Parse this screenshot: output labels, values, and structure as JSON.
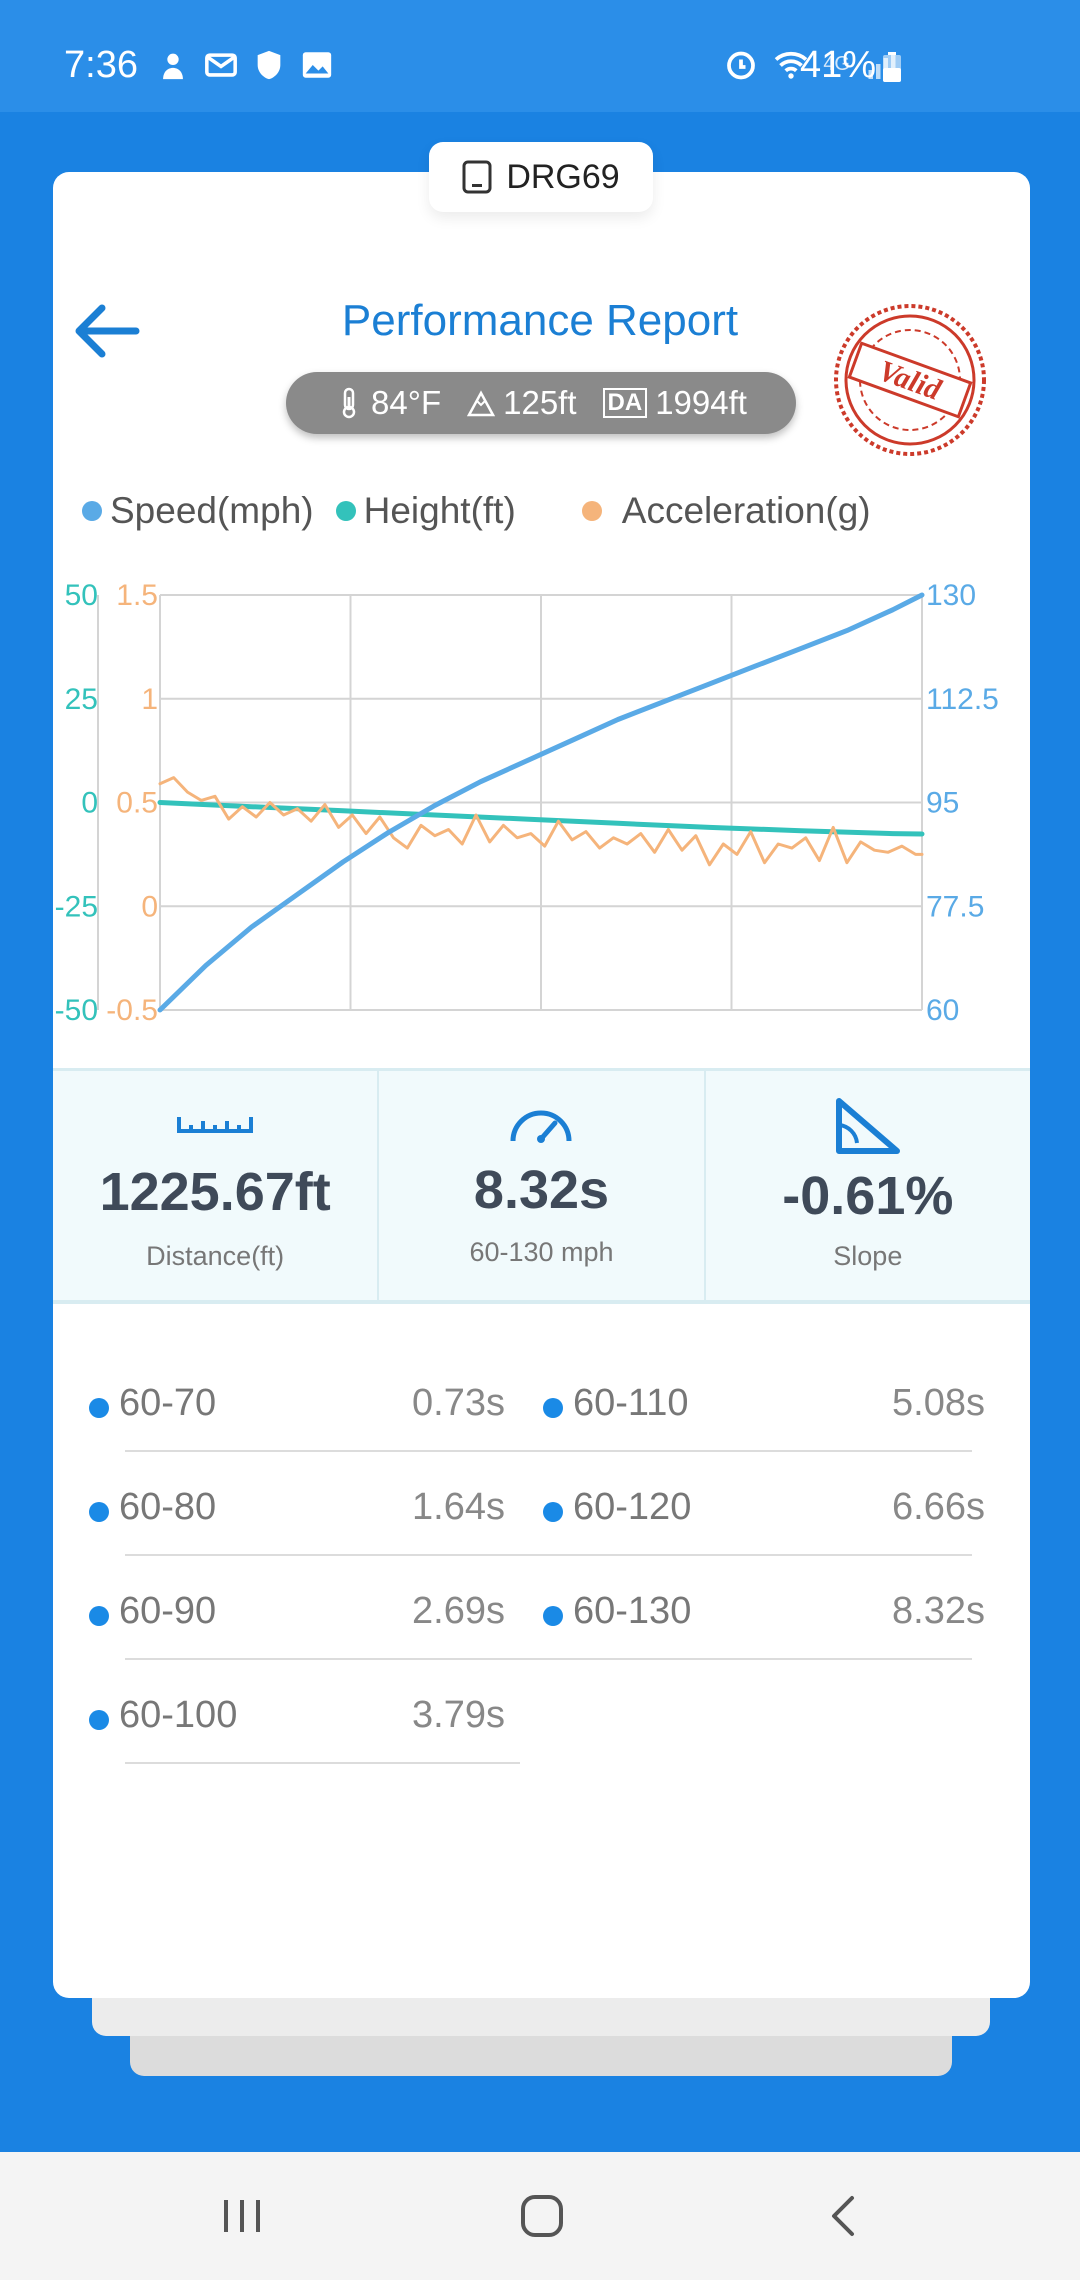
{
  "status_bar": {
    "time": "7:36",
    "battery": "41%",
    "network": "4G",
    "left_icons": [
      "notification-icon",
      "message-icon",
      "shield-icon",
      "gallery-icon"
    ],
    "right_icons": [
      "alarm-icon",
      "wifi-icon",
      "signal-icon",
      "battery-icon"
    ]
  },
  "device": {
    "name": "DRG69"
  },
  "header": {
    "title": "Performance Report",
    "stamp_text": "Valid"
  },
  "environment": {
    "temperature": "84°F",
    "altitude": "125ft",
    "da_label": "DA",
    "density_altitude": "1994ft"
  },
  "legend": [
    {
      "label": "Speed(mph)",
      "color": "#5aaae6"
    },
    {
      "label": "Height(ft)",
      "color": "#33c2bb"
    },
    {
      "label": "Acceleration(g)",
      "color": "#f5b47b"
    }
  ],
  "chart_data": {
    "type": "line",
    "series": [
      {
        "name": "Speed(mph)",
        "axis": "right",
        "color": "#5aaae6",
        "x": [
          0,
          0.5,
          1,
          1.5,
          2,
          2.5,
          3,
          3.5,
          4,
          4.5,
          5,
          5.5,
          6,
          6.5,
          7,
          7.5,
          8,
          8.32
        ],
        "y": [
          60,
          67.5,
          74,
          79.5,
          85,
          90,
          94.5,
          98.5,
          102,
          105.5,
          109,
          112,
          115,
          118,
          121,
          124,
          127.5,
          130
        ]
      },
      {
        "name": "Height(ft)",
        "axis": "left-outer",
        "color": "#33c2bb",
        "x": [
          0,
          1,
          2,
          3,
          4,
          5,
          6,
          7,
          8,
          8.32
        ],
        "y": [
          0,
          -1,
          -2,
          -3,
          -4,
          -5,
          -6,
          -6.8,
          -7.5,
          -7.6
        ]
      },
      {
        "name": "Acceleration(g)",
        "axis": "left-inner",
        "color": "#f5b47b",
        "x": [
          0,
          0.15,
          0.3,
          0.45,
          0.6,
          0.75,
          0.9,
          1.05,
          1.2,
          1.35,
          1.5,
          1.65,
          1.8,
          1.95,
          2.1,
          2.25,
          2.4,
          2.55,
          2.7,
          2.85,
          3.0,
          3.15,
          3.3,
          3.45,
          3.6,
          3.75,
          3.9,
          4.05,
          4.2,
          4.35,
          4.5,
          4.65,
          4.8,
          4.95,
          5.1,
          5.25,
          5.4,
          5.55,
          5.7,
          5.85,
          6.0,
          6.15,
          6.3,
          6.45,
          6.6,
          6.75,
          6.9,
          7.05,
          7.2,
          7.35,
          7.5,
          7.65,
          7.8,
          7.95,
          8.1,
          8.25,
          8.32
        ],
        "y": [
          0.59,
          0.62,
          0.55,
          0.51,
          0.53,
          0.42,
          0.48,
          0.43,
          0.5,
          0.44,
          0.47,
          0.41,
          0.49,
          0.38,
          0.44,
          0.35,
          0.43,
          0.33,
          0.28,
          0.39,
          0.34,
          0.37,
          0.3,
          0.44,
          0.31,
          0.39,
          0.33,
          0.35,
          0.29,
          0.41,
          0.32,
          0.36,
          0.28,
          0.33,
          0.3,
          0.35,
          0.26,
          0.37,
          0.27,
          0.34,
          0.2,
          0.3,
          0.25,
          0.36,
          0.21,
          0.3,
          0.28,
          0.33,
          0.22,
          0.38,
          0.21,
          0.31,
          0.27,
          0.26,
          0.29,
          0.25,
          0.25
        ]
      }
    ],
    "axes": {
      "left_outer": {
        "series": "Height(ft)",
        "ticks": [
          "50",
          "25",
          "0",
          "-25",
          "-50"
        ],
        "range": [
          -50,
          50
        ],
        "color": "#33c2bb"
      },
      "left_inner": {
        "series": "Acceleration(g)",
        "ticks": [
          "1.5",
          "1",
          "0.5",
          "0",
          "-0.5"
        ],
        "range": [
          -0.5,
          1.5
        ],
        "color": "#f5b47b"
      },
      "right": {
        "series": "Speed(mph)",
        "ticks": [
          "130",
          "112.5",
          "95",
          "77.5",
          "60"
        ],
        "range": [
          60,
          130
        ],
        "color": "#5aaae6"
      }
    },
    "x_range": [
      0,
      8.32
    ],
    "grid": true,
    "legend_position": "top"
  },
  "stats": [
    {
      "icon": "ruler-icon",
      "value": "1225.67ft",
      "label": "Distance(ft)"
    },
    {
      "icon": "speedometer-icon",
      "value": "8.32s",
      "label": "60-130 mph"
    },
    {
      "icon": "slope-icon",
      "value": "-0.61%",
      "label": "Slope"
    }
  ],
  "splits": [
    {
      "name": "60-70",
      "time": "0.73s"
    },
    {
      "name": "60-110",
      "time": "5.08s"
    },
    {
      "name": "60-80",
      "time": "1.64s"
    },
    {
      "name": "60-120",
      "time": "6.66s"
    },
    {
      "name": "60-90",
      "time": "2.69s"
    },
    {
      "name": "60-130",
      "time": "8.32s"
    },
    {
      "name": "60-100",
      "time": "3.79s"
    }
  ],
  "colors": {
    "accent": "#1b7fd4",
    "background": "#1a82e2",
    "split_dot": "#1a8ae6"
  }
}
